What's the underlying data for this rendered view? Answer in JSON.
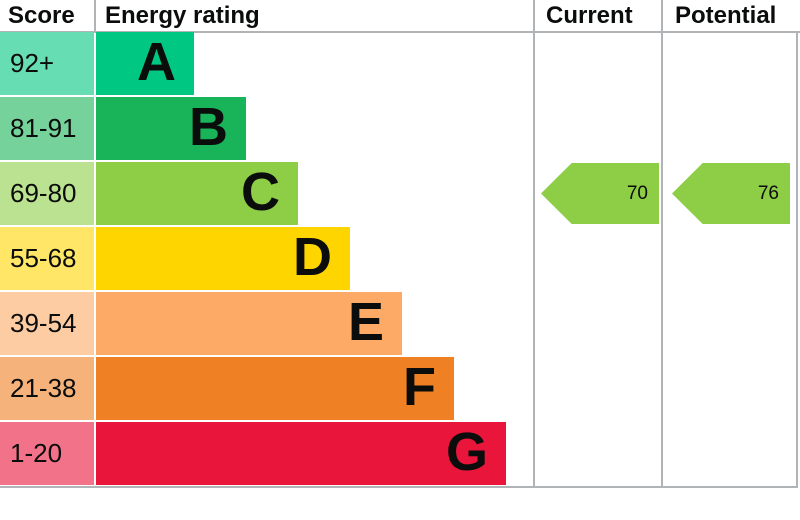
{
  "header": {
    "score": "Score",
    "energy_rating": "Energy rating",
    "current": "Current",
    "potential": "Potential"
  },
  "chart_data": {
    "type": "bar",
    "description": "EPC energy efficiency rating chart",
    "bands": [
      {
        "letter": "A",
        "score_range": "92+",
        "bar_color": "#00c781",
        "score_bg": "#66ddb3"
      },
      {
        "letter": "B",
        "score_range": "81-91",
        "bar_color": "#19b459",
        "score_bg": "#75d29b"
      },
      {
        "letter": "C",
        "score_range": "69-80",
        "bar_color": "#8dce46",
        "score_bg": "#bbe290"
      },
      {
        "letter": "D",
        "score_range": "55-68",
        "bar_color": "#ffd500",
        "score_bg": "#ffe666"
      },
      {
        "letter": "E",
        "score_range": "39-54",
        "bar_color": "#fcaa65",
        "score_bg": "#fdcca3"
      },
      {
        "letter": "F",
        "score_range": "21-38",
        "bar_color": "#ef8023",
        "score_bg": "#f5b37b"
      },
      {
        "letter": "G",
        "score_range": "1-20",
        "bar_color": "#e9153b",
        "score_bg": "#f27389"
      }
    ],
    "current": {
      "value": 70,
      "band": "C",
      "band_index": 2,
      "arrow_color": "#8dce46"
    },
    "potential": {
      "value": 76,
      "band": "C",
      "band_index": 2,
      "arrow_color": "#8dce46"
    },
    "border_color": "#b1b4b6",
    "text_color": "#0b0c0c"
  }
}
